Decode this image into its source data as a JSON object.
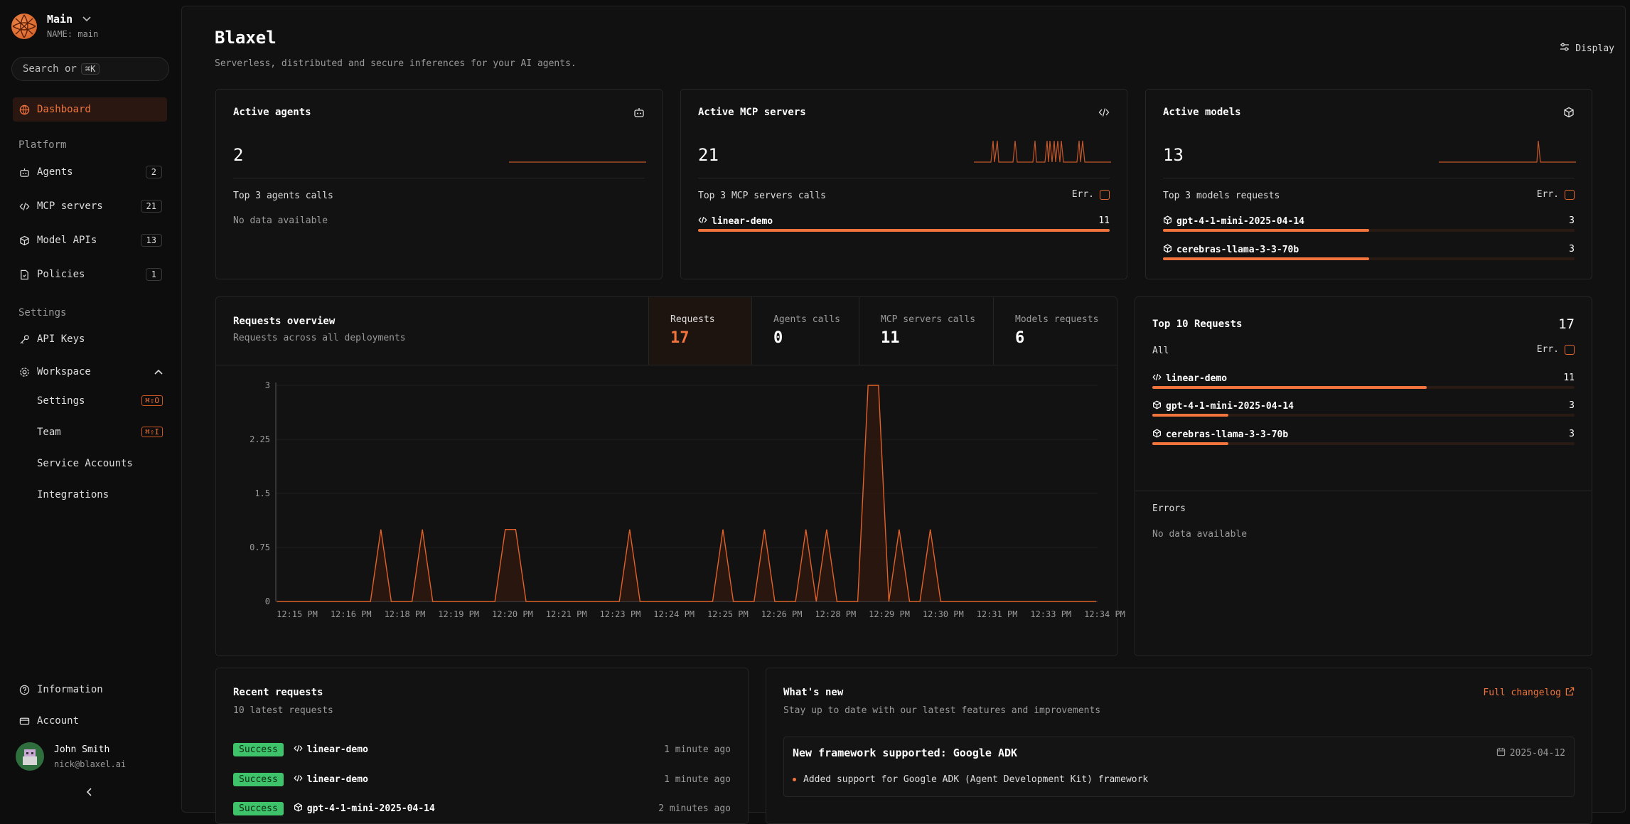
{
  "workspace": {
    "name": "Main",
    "sub": "NAME: main"
  },
  "search": {
    "text": "Search or",
    "kbd": "⌘K"
  },
  "nav": {
    "dashboard": "Dashboard",
    "platform_label": "Platform",
    "agents": {
      "label": "Agents",
      "count": "2"
    },
    "mcp": {
      "label": "MCP servers",
      "count": "21"
    },
    "models": {
      "label": "Model APIs",
      "count": "13"
    },
    "policies": {
      "label": "Policies",
      "count": "1"
    },
    "settings_label": "Settings",
    "api_keys": "API Keys",
    "workspace": "Workspace",
    "ws_settings": {
      "label": "Settings",
      "kbd": "⌘⇧O"
    },
    "ws_team": {
      "label": "Team",
      "kbd": "⌘⇧I"
    },
    "service_accounts": "Service Accounts",
    "integrations": "Integrations",
    "information": "Information",
    "account": "Account"
  },
  "user": {
    "name": "John Smith",
    "email": "nick@blaxel.ai"
  },
  "header": {
    "title": "Blaxel",
    "subtitle": "Serverless, distributed and secure inferences for your AI agents.",
    "display": "Display"
  },
  "cards": {
    "agents": {
      "title": "Active agents",
      "value": "2",
      "label": "Top 3 agents calls",
      "nodata": "No data available"
    },
    "mcp": {
      "title": "Active MCP servers",
      "value": "21",
      "label": "Top 3 MCP servers calls",
      "err": "Err.",
      "rows": [
        {
          "name": "linear-demo",
          "value": "11",
          "pct": 100
        }
      ]
    },
    "models": {
      "title": "Active models",
      "value": "13",
      "label": "Top 3 models requests",
      "err": "Err.",
      "rows": [
        {
          "name": "gpt-4-1-mini-2025-04-14",
          "value": "3",
          "pct": 50
        },
        {
          "name": "cerebras-llama-3-3-70b",
          "value": "3",
          "pct": 50
        }
      ]
    }
  },
  "overview": {
    "title": "Requests overview",
    "subtitle": "Requests across all deployments",
    "tabs": [
      {
        "label": "Requests",
        "value": "17"
      },
      {
        "label": "Agents calls",
        "value": "0"
      },
      {
        "label": "MCP servers calls",
        "value": "11"
      },
      {
        "label": "Models requests",
        "value": "6"
      }
    ]
  },
  "chart_data": {
    "type": "area",
    "title": "",
    "xlabel": "",
    "ylabel": "",
    "ylim": [
      0,
      3
    ],
    "yticks": [
      "3",
      "2.25",
      "1.5",
      "0.75",
      "0"
    ],
    "x_tick_labels": [
      "12:15 PM",
      "12:16 PM",
      "12:18 PM",
      "12:19 PM",
      "12:20 PM",
      "12:21 PM",
      "12:23 PM",
      "12:24 PM",
      "12:25 PM",
      "12:26 PM",
      "12:28 PM",
      "12:29 PM",
      "12:30 PM",
      "12:31 PM",
      "12:33 PM",
      "12:34 PM"
    ],
    "series": [
      {
        "values": [
          0,
          0,
          0,
          0,
          0,
          0,
          0,
          0,
          0,
          0,
          1,
          0,
          0,
          0,
          1,
          0,
          0,
          0,
          0,
          0,
          0,
          0,
          1,
          1,
          0,
          0,
          0,
          0,
          0,
          0,
          0,
          0,
          0,
          0,
          1,
          0,
          0,
          0,
          0,
          0,
          0,
          0,
          0,
          1,
          0,
          0,
          0,
          1,
          0,
          0,
          0,
          1,
          0,
          1,
          0,
          0,
          0,
          3,
          3,
          0,
          1,
          0,
          0,
          1,
          0,
          0,
          0,
          0,
          0,
          0,
          0,
          0,
          0,
          0,
          0,
          0,
          0,
          0,
          0,
          0
        ]
      }
    ]
  },
  "top10": {
    "title": "Top 10 Requests",
    "total": "17",
    "all": "All",
    "err": "Err.",
    "rows": [
      {
        "name": "linear-demo",
        "value": "11",
        "pct": 65,
        "icon": "code-icon"
      },
      {
        "name": "gpt-4-1-mini-2025-04-14",
        "value": "3",
        "pct": 18,
        "icon": "cube-icon"
      },
      {
        "name": "cerebras-llama-3-3-70b",
        "value": "3",
        "pct": 18,
        "icon": "cube-icon"
      }
    ],
    "errors_title": "Errors",
    "errors_nodata": "No data available"
  },
  "recent": {
    "title": "Recent requests",
    "subtitle": "10 latest requests",
    "rows": [
      {
        "status": "Success",
        "name": "linear-demo",
        "time": "1 minute ago",
        "icon": "code-icon"
      },
      {
        "status": "Success",
        "name": "linear-demo",
        "time": "1 minute ago",
        "icon": "code-icon"
      },
      {
        "status": "Success",
        "name": "gpt-4-1-mini-2025-04-14",
        "time": "2 minutes ago",
        "icon": "cube-icon"
      }
    ]
  },
  "whatsnew": {
    "title": "What's new",
    "subtitle": "Stay up to date with our latest features and improvements",
    "changelog": "Full changelog",
    "item_title": "New framework supported: Google ADK",
    "item_date": "2025-04-12",
    "item_bullet": "Added support for Google ADK (Agent Development Kit) framework"
  },
  "colors": {
    "accent": "#f0743c",
    "success": "#3ec36a",
    "bg": "#0d0d0d"
  }
}
